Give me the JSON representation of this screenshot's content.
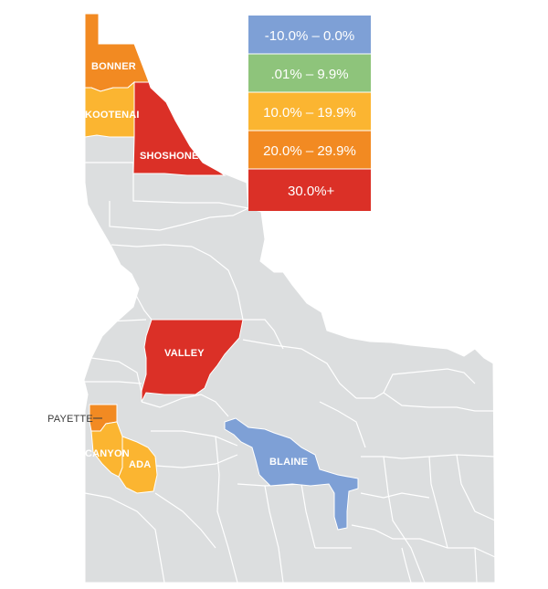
{
  "colors": {
    "base": "#dcdedf",
    "borders": "#ffffff",
    "neg_0": "#7ea0d6",
    "low": "#8ec47b",
    "mid": "#fbb531",
    "high": "#f28a22",
    "top": "#db3027"
  },
  "legend": [
    {
      "label": "-10.0% – 0.0%",
      "color": "#7ea0d6"
    },
    {
      "label": ".01% – 9.9%",
      "color": "#8ec47b"
    },
    {
      "label": "10.0% – 19.9%",
      "color": "#fbb531"
    },
    {
      "label": "20.0% – 29.9%",
      "color": "#f28a22"
    },
    {
      "label": "30.0%+",
      "color": "#db3027"
    }
  ],
  "counties": {
    "bonner": {
      "label": "BONNER",
      "color": "#f28a22"
    },
    "kootenai": {
      "label": "KOOTENAI",
      "color": "#fbb531"
    },
    "shoshone": {
      "label": "SHOSHONE",
      "color": "#db3027"
    },
    "valley": {
      "label": "VALLEY",
      "color": "#db3027"
    },
    "payette": {
      "label": "PAYETTE",
      "color": "#f28a22"
    },
    "canyon": {
      "label": "CANYON",
      "color": "#fbb531"
    },
    "ada": {
      "label": "ADA",
      "color": "#fbb531"
    },
    "blaine": {
      "label": "BLAINE",
      "color": "#7ea0d6"
    }
  }
}
